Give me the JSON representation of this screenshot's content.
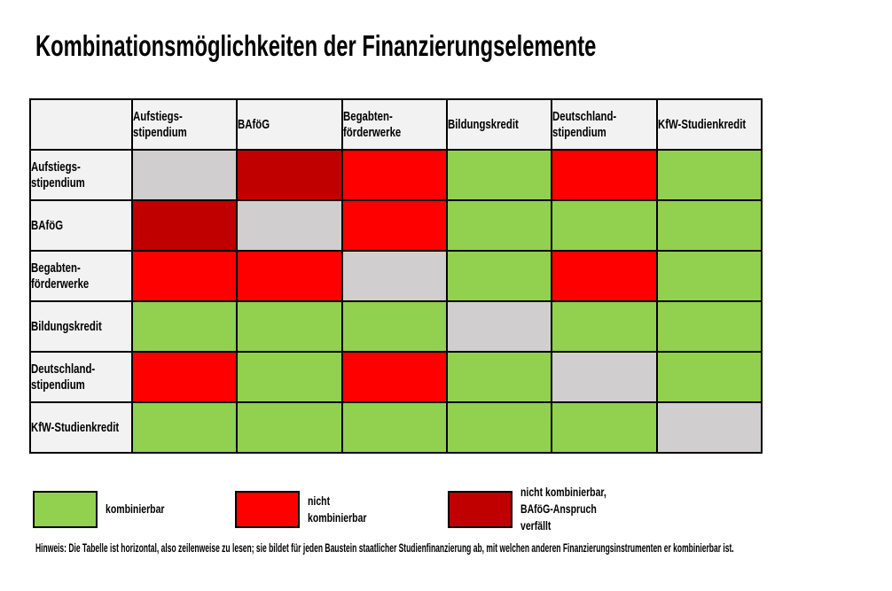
{
  "title": "Kombinationsmöglichkeiten der Finanzierungselemente",
  "chart_data": {
    "type": "heatmap",
    "title": "Kombinationsmöglichkeiten der Finanzierungselemente",
    "columns": [
      "Aufstiegs-\nstipendium",
      "BAföG",
      "Begabten-\nförderwerke",
      "Bildungskredit",
      "Deutschland-\nstipendium",
      "KfW-Studienkredit"
    ],
    "rows": [
      {
        "label": "Aufstiegs-\nstipendium",
        "cells": [
          "self",
          "darkred",
          "red",
          "green",
          "red",
          "green"
        ]
      },
      {
        "label": "BAföG",
        "cells": [
          "darkred",
          "self",
          "red",
          "green",
          "green",
          "green"
        ]
      },
      {
        "label": "Begabten-\nförderwerke",
        "cells": [
          "red",
          "red",
          "self",
          "green",
          "red",
          "green"
        ]
      },
      {
        "label": "Bildungskredit",
        "cells": [
          "green",
          "green",
          "green",
          "self",
          "green",
          "green"
        ]
      },
      {
        "label": "Deutschland-\nstipendium",
        "cells": [
          "red",
          "green",
          "red",
          "green",
          "self",
          "green"
        ]
      },
      {
        "label": "KfW-Studienkredit",
        "cells": [
          "green",
          "green",
          "green",
          "green",
          "green",
          "self"
        ]
      }
    ],
    "colors": {
      "green": "#92D050",
      "red": "#FF0000",
      "darkred": "#C00000",
      "self": "#D0CECE",
      "header_bg": "#F2F2F2",
      "border": "#000000"
    },
    "meanings": {
      "green": "kombinierbar",
      "red": "nicht kombinierbar",
      "darkred": "nicht kombinierbar, BAföG-Anspruch verfällt"
    }
  },
  "legend": {
    "items": [
      {
        "color_key": "green",
        "label": "kombinierbar"
      },
      {
        "color_key": "red",
        "label": "nicht\nkombinierbar"
      },
      {
        "color_key": "darkred",
        "label": "nicht kombinierbar,\nBAföG-Anspruch\nverfällt"
      }
    ]
  },
  "footnote": "Hinweis: Die Tabelle ist horizontal, also zeilenweise zu lesen; sie bildet für jeden Baustein staatlicher Studienfinanzierung ab, mit welchen anderen Finanzierungsinstrumenten er kombinierbar ist."
}
